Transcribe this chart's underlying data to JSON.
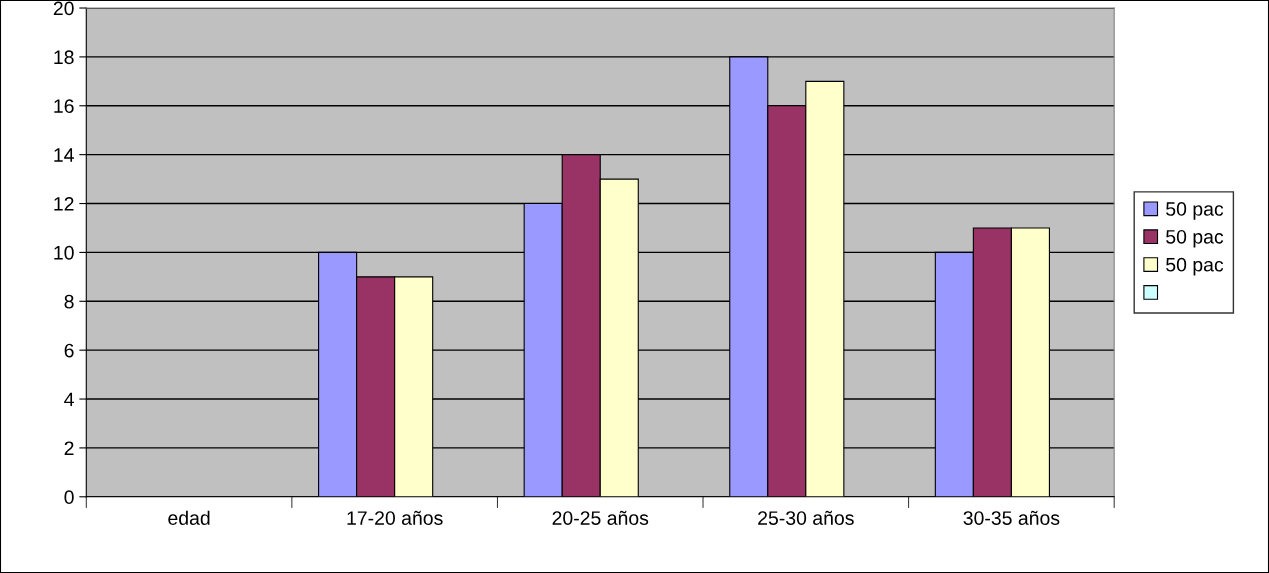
{
  "chart_data": {
    "type": "bar",
    "categories": [
      "edad",
      "17-20 años",
      "20-25 años",
      "25-30 años",
      "30-35 años"
    ],
    "series": [
      {
        "name": "50 pac",
        "color": "#9999ff",
        "values": [
          null,
          10,
          12,
          18,
          10
        ]
      },
      {
        "name": "50 pac",
        "color": "#993366",
        "values": [
          null,
          9,
          14,
          16,
          11
        ]
      },
      {
        "name": "50 pac",
        "color": "#ffffcc",
        "values": [
          null,
          9,
          13,
          17,
          11
        ]
      },
      {
        "color": "#ccffff",
        "values": [
          null,
          null,
          null,
          null,
          null
        ]
      }
    ],
    "ylim": [
      0,
      20
    ],
    "yticks": [
      0,
      2,
      4,
      6,
      8,
      10,
      12,
      14,
      16,
      18,
      20
    ],
    "grid": "y",
    "legend": "right"
  }
}
